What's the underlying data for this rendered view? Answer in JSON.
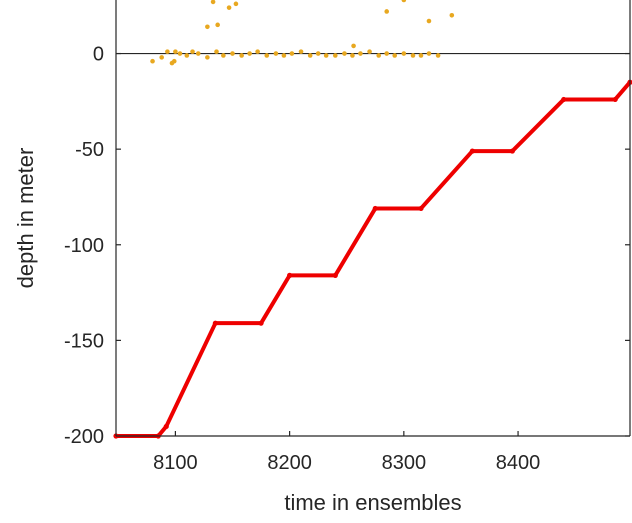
{
  "chart_data": {
    "type": "scatter",
    "title": "",
    "xlabel": "time in ensembles",
    "ylabel": "depth in meter",
    "xlim": [
      8048,
      8498
    ],
    "ylim": [
      -200,
      28
    ],
    "x_ticks": [
      8100,
      8200,
      8300,
      8400
    ],
    "y_ticks": [
      0,
      -50,
      -100,
      -150,
      -200
    ],
    "x_tick_labels": [
      "8100",
      "8200",
      "8300",
      "8400"
    ],
    "y_tick_labels": [
      "0",
      "-50",
      "-100",
      "-150",
      "-200"
    ],
    "grid": false,
    "reference_line_y": 0,
    "colors": {
      "depth": "#ee0000",
      "surface": "#e8a820",
      "axis": "#262626"
    },
    "series": [
      {
        "marker": "dense-dots",
        "color": "#ee0000",
        "x": [
          8048,
          8085,
          8092,
          8135,
          8175,
          8200,
          8240,
          8275,
          8315,
          8360,
          8395,
          8440,
          8485,
          8498
        ],
        "y": [
          -200,
          -200,
          -195,
          -141,
          -141,
          -116,
          -116,
          -81,
          -81,
          -51,
          -51,
          -24,
          -24,
          -15
        ]
      },
      {
        "marker": "dots",
        "color": "#e8a820",
        "x": [
          8080,
          8088,
          8093,
          8097,
          8100,
          8104,
          8110,
          8115,
          8120,
          8128,
          8136,
          8142,
          8150,
          8158,
          8165,
          8172,
          8180,
          8188,
          8195,
          8202,
          8210,
          8218,
          8225,
          8232,
          8240,
          8248,
          8255,
          8262,
          8270,
          8278,
          8285,
          8292,
          8300,
          8308,
          8315,
          8322,
          8330,
          8128,
          8133,
          8137,
          8147,
          8153,
          8285,
          8300,
          8322,
          8342,
          8256,
          8099
        ],
        "y": [
          -4,
          -2,
          1,
          -5,
          1,
          0,
          -1,
          1,
          0,
          -2,
          1,
          -1,
          0,
          -1,
          0,
          1,
          -1,
          0,
          -1,
          0,
          1,
          -1,
          0,
          -1,
          -1,
          0,
          -1,
          0,
          1,
          -1,
          0,
          -1,
          0,
          -1,
          -1,
          0,
          -1,
          14,
          27,
          15,
          24,
          26,
          22,
          28,
          17,
          20,
          4,
          -4
        ]
      }
    ]
  }
}
